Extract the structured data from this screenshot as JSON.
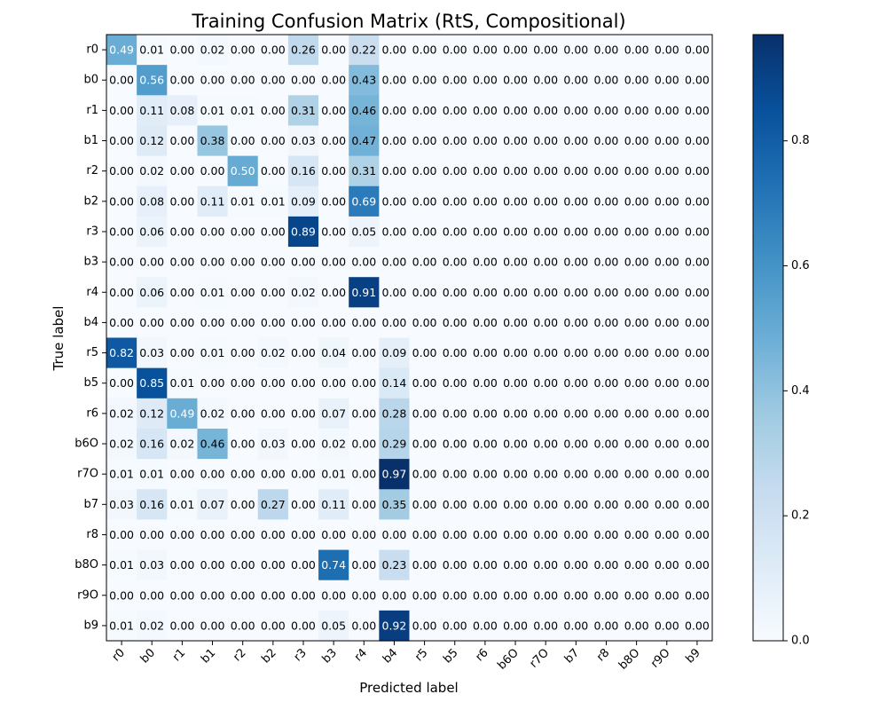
{
  "chart_data": {
    "type": "heatmap",
    "title": "Training Confusion Matrix (RtS, Compositional)",
    "xlabel": "Predicted label",
    "ylabel": "True label",
    "x_categories": [
      "r0",
      "b0",
      "r1",
      "b1",
      "r2",
      "b2",
      "r3",
      "b3",
      "r4",
      "b4",
      "r5",
      "b5",
      "r6",
      "b6O",
      "r7O",
      "b7",
      "r8",
      "b8O",
      "r9O",
      "b9"
    ],
    "y_categories": [
      "r0",
      "b0",
      "r1",
      "b1",
      "r2",
      "b2",
      "r3",
      "b3",
      "r4",
      "b4",
      "r5",
      "b5",
      "r6",
      "b6O",
      "r7O",
      "b7",
      "r8",
      "b8O",
      "r9O",
      "b9"
    ],
    "values": [
      [
        0.49,
        0.01,
        0.0,
        0.02,
        0.0,
        0.0,
        0.26,
        0.0,
        0.22,
        0.0,
        0.0,
        0.0,
        0.0,
        0.0,
        0.0,
        0.0,
        0.0,
        0.0,
        0.0,
        0.0
      ],
      [
        0.0,
        0.56,
        0.0,
        0.0,
        0.0,
        0.0,
        0.0,
        0.0,
        0.43,
        0.0,
        0.0,
        0.0,
        0.0,
        0.0,
        0.0,
        0.0,
        0.0,
        0.0,
        0.0,
        0.0
      ],
      [
        0.0,
        0.11,
        0.08,
        0.01,
        0.01,
        0.0,
        0.31,
        0.0,
        0.46,
        0.0,
        0.0,
        0.0,
        0.0,
        0.0,
        0.0,
        0.0,
        0.0,
        0.0,
        0.0,
        0.0
      ],
      [
        0.0,
        0.12,
        0.0,
        0.38,
        0.0,
        0.0,
        0.03,
        0.0,
        0.47,
        0.0,
        0.0,
        0.0,
        0.0,
        0.0,
        0.0,
        0.0,
        0.0,
        0.0,
        0.0,
        0.0
      ],
      [
        0.0,
        0.02,
        0.0,
        0.0,
        0.5,
        0.0,
        0.16,
        0.0,
        0.31,
        0.0,
        0.0,
        0.0,
        0.0,
        0.0,
        0.0,
        0.0,
        0.0,
        0.0,
        0.0,
        0.0
      ],
      [
        0.0,
        0.08,
        0.0,
        0.11,
        0.01,
        0.01,
        0.09,
        0.0,
        0.69,
        0.0,
        0.0,
        0.0,
        0.0,
        0.0,
        0.0,
        0.0,
        0.0,
        0.0,
        0.0,
        0.0
      ],
      [
        0.0,
        0.06,
        0.0,
        0.0,
        0.0,
        0.0,
        0.89,
        0.0,
        0.05,
        0.0,
        0.0,
        0.0,
        0.0,
        0.0,
        0.0,
        0.0,
        0.0,
        0.0,
        0.0,
        0.0
      ],
      [
        0.0,
        0.0,
        0.0,
        0.0,
        0.0,
        0.0,
        0.0,
        0.0,
        0.0,
        0.0,
        0.0,
        0.0,
        0.0,
        0.0,
        0.0,
        0.0,
        0.0,
        0.0,
        0.0,
        0.0
      ],
      [
        0.0,
        0.06,
        0.0,
        0.01,
        0.0,
        0.0,
        0.02,
        0.0,
        0.91,
        0.0,
        0.0,
        0.0,
        0.0,
        0.0,
        0.0,
        0.0,
        0.0,
        0.0,
        0.0,
        0.0
      ],
      [
        0.0,
        0.0,
        0.0,
        0.0,
        0.0,
        0.0,
        0.0,
        0.0,
        0.0,
        0.0,
        0.0,
        0.0,
        0.0,
        0.0,
        0.0,
        0.0,
        0.0,
        0.0,
        0.0,
        0.0
      ],
      [
        0.82,
        0.03,
        0.0,
        0.01,
        0.0,
        0.02,
        0.0,
        0.04,
        0.0,
        0.09,
        0.0,
        0.0,
        0.0,
        0.0,
        0.0,
        0.0,
        0.0,
        0.0,
        0.0,
        0.0
      ],
      [
        0.0,
        0.85,
        0.01,
        0.0,
        0.0,
        0.0,
        0.0,
        0.0,
        0.0,
        0.14,
        0.0,
        0.0,
        0.0,
        0.0,
        0.0,
        0.0,
        0.0,
        0.0,
        0.0,
        0.0
      ],
      [
        0.02,
        0.12,
        0.49,
        0.02,
        0.0,
        0.0,
        0.0,
        0.07,
        0.0,
        0.28,
        0.0,
        0.0,
        0.0,
        0.0,
        0.0,
        0.0,
        0.0,
        0.0,
        0.0,
        0.0
      ],
      [
        0.02,
        0.16,
        0.02,
        0.46,
        0.0,
        0.03,
        0.0,
        0.02,
        0.0,
        0.29,
        0.0,
        0.0,
        0.0,
        0.0,
        0.0,
        0.0,
        0.0,
        0.0,
        0.0,
        0.0
      ],
      [
        0.01,
        0.01,
        0.0,
        0.0,
        0.0,
        0.0,
        0.0,
        0.01,
        0.0,
        0.97,
        0.0,
        0.0,
        0.0,
        0.0,
        0.0,
        0.0,
        0.0,
        0.0,
        0.0,
        0.0
      ],
      [
        0.03,
        0.16,
        0.01,
        0.07,
        0.0,
        0.27,
        0.0,
        0.11,
        0.0,
        0.35,
        0.0,
        0.0,
        0.0,
        0.0,
        0.0,
        0.0,
        0.0,
        0.0,
        0.0,
        0.0
      ],
      [
        0.0,
        0.0,
        0.0,
        0.0,
        0.0,
        0.0,
        0.0,
        0.0,
        0.0,
        0.0,
        0.0,
        0.0,
        0.0,
        0.0,
        0.0,
        0.0,
        0.0,
        0.0,
        0.0,
        0.0
      ],
      [
        0.01,
        0.03,
        0.0,
        0.0,
        0.0,
        0.0,
        0.0,
        0.74,
        0.0,
        0.23,
        0.0,
        0.0,
        0.0,
        0.0,
        0.0,
        0.0,
        0.0,
        0.0,
        0.0,
        0.0
      ],
      [
        0.0,
        0.0,
        0.0,
        0.0,
        0.0,
        0.0,
        0.0,
        0.0,
        0.0,
        0.0,
        0.0,
        0.0,
        0.0,
        0.0,
        0.0,
        0.0,
        0.0,
        0.0,
        0.0,
        0.0
      ],
      [
        0.01,
        0.02,
        0.0,
        0.0,
        0.0,
        0.0,
        0.0,
        0.05,
        0.0,
        0.92,
        0.0,
        0.0,
        0.0,
        0.0,
        0.0,
        0.0,
        0.0,
        0.0,
        0.0,
        0.0
      ]
    ],
    "colorbar": {
      "colormap": "Blues",
      "vmin": 0.0,
      "vmax": 0.97,
      "ticks": [
        0.0,
        0.2,
        0.4,
        0.6,
        0.8
      ],
      "tick_labels": [
        "0.0",
        "0.2",
        "0.4",
        "0.6",
        "0.8"
      ]
    },
    "value_format": "2 decimals",
    "text_color_light": "#ffffff",
    "text_color_dark": "#000000",
    "grid": false
  }
}
